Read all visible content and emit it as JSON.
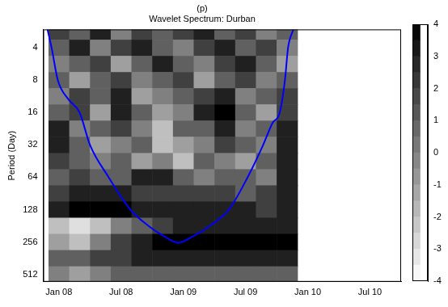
{
  "chart_data": {
    "type": "heatmap",
    "panel": "(p)",
    "title": "Wavelet Spectrum: Durban",
    "y_label": "Period (Day)",
    "log": "y",
    "grid": false,
    "xlim": [
      -1.5,
      33
    ],
    "xticks": [
      {
        "value": 0,
        "label": "Jan 08"
      },
      {
        "value": 6,
        "label": "Jul 08"
      },
      {
        "value": 12,
        "label": "Jan 09"
      },
      {
        "value": 18,
        "label": "Jul 09"
      },
      {
        "value": 24,
        "label": "Jan 10"
      },
      {
        "value": 30,
        "label": "Jul 10"
      }
    ],
    "ylim": [
      2.7,
      600
    ],
    "yticks": [
      4,
      8,
      16,
      32,
      64,
      128,
      256,
      512
    ],
    "x": [
      0,
      2,
      4,
      6,
      8,
      10,
      12,
      14,
      16,
      18,
      20,
      22
    ],
    "periods": [
      2.83,
      4,
      5.66,
      8,
      11.3,
      16,
      22.6,
      32,
      45.3,
      64,
      90.5,
      128,
      181,
      256,
      362,
      512
    ],
    "cells": [
      [
        2,
        1,
        3,
        0,
        2,
        1,
        2,
        3,
        1,
        2,
        0,
        1
      ],
      [
        1,
        3,
        0,
        2,
        3,
        1,
        0,
        2,
        3,
        1,
        2,
        0
      ],
      [
        0,
        1,
        2,
        -1,
        1,
        3,
        1,
        0,
        2,
        3,
        1,
        -1
      ],
      [
        1,
        -1,
        1,
        2,
        0,
        1,
        2,
        -1,
        1,
        2,
        0,
        1
      ],
      [
        0,
        2,
        1,
        3,
        -1,
        0,
        1,
        2,
        3,
        0,
        1,
        2
      ],
      [
        1,
        2,
        -1,
        3,
        1,
        -1,
        0,
        3,
        4,
        1,
        -1,
        2
      ],
      [
        3,
        0,
        1,
        2,
        0,
        -2,
        1,
        1,
        3,
        0,
        1,
        3
      ],
      [
        3,
        1,
        -1,
        0,
        1,
        -2,
        -1,
        0,
        2,
        1,
        0,
        3
      ],
      [
        2,
        1,
        0,
        1,
        -1,
        0,
        -2,
        1,
        0,
        -1,
        1,
        3
      ],
      [
        1,
        2,
        1,
        1,
        3,
        3,
        1,
        0,
        1,
        1,
        0,
        3
      ],
      [
        2,
        3,
        3,
        3,
        2,
        2,
        2,
        2,
        2,
        1,
        2,
        3
      ],
      [
        3,
        4,
        4,
        4,
        3,
        3,
        3,
        3,
        3,
        3,
        2,
        3
      ],
      [
        -2,
        -3,
        -2,
        0,
        1,
        2,
        3,
        3,
        3,
        3,
        3,
        3
      ],
      [
        -1,
        -2,
        0,
        2,
        3,
        4,
        4,
        4,
        4,
        4,
        4,
        4
      ],
      [
        1,
        1,
        2,
        2,
        3,
        3,
        3,
        3,
        3,
        3,
        3,
        3
      ],
      [
        0,
        -1,
        0,
        1,
        1,
        1,
        1,
        1,
        1,
        1,
        1,
        1
      ]
    ],
    "colorbar": {
      "range": [
        -4,
        4
      ],
      "ticks": [
        -4,
        -3,
        -2,
        -1,
        0,
        1,
        2,
        3,
        4
      ]
    },
    "cone_of_influence": {
      "color": "#0000ff",
      "x": [
        -1.1,
        -0.7,
        -0.1,
        0.9,
        2,
        3,
        4.8,
        6.9,
        8.6,
        10.1,
        11.5,
        13,
        14.6,
        16.4,
        18.2,
        19.7,
        20.6,
        21.3,
        21.8,
        22.1,
        22.6
      ],
      "period": [
        2.7,
        4,
        8,
        12,
        16,
        32,
        64,
        128,
        180,
        225,
        260,
        225,
        180,
        128,
        64,
        32,
        20,
        16,
        8,
        4,
        2.7
      ]
    }
  }
}
